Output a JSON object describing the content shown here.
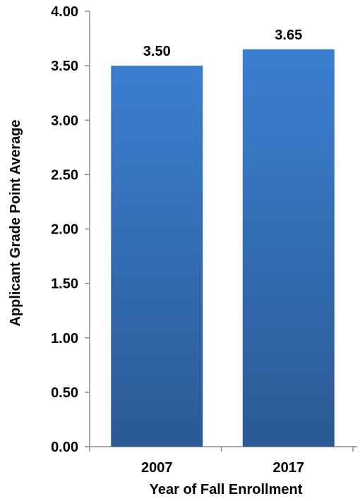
{
  "chart_data": {
    "type": "bar",
    "categories": [
      "2007",
      "2017"
    ],
    "values": [
      3.5,
      3.65
    ],
    "data_labels": [
      "3.50",
      "3.65"
    ],
    "title": "",
    "xlabel": "Year of Fall Enrollment",
    "ylabel": "Applicant Grade Point Average",
    "ylim": [
      0,
      4
    ],
    "yticks": [
      "0.00",
      "0.50",
      "1.00",
      "1.50",
      "2.00",
      "2.50",
      "3.00",
      "3.50",
      "4.00"
    ],
    "grid": false,
    "legend": "none",
    "bar_color_top": "#3b7fd0",
    "bar_color_bottom": "#2b5a94"
  }
}
